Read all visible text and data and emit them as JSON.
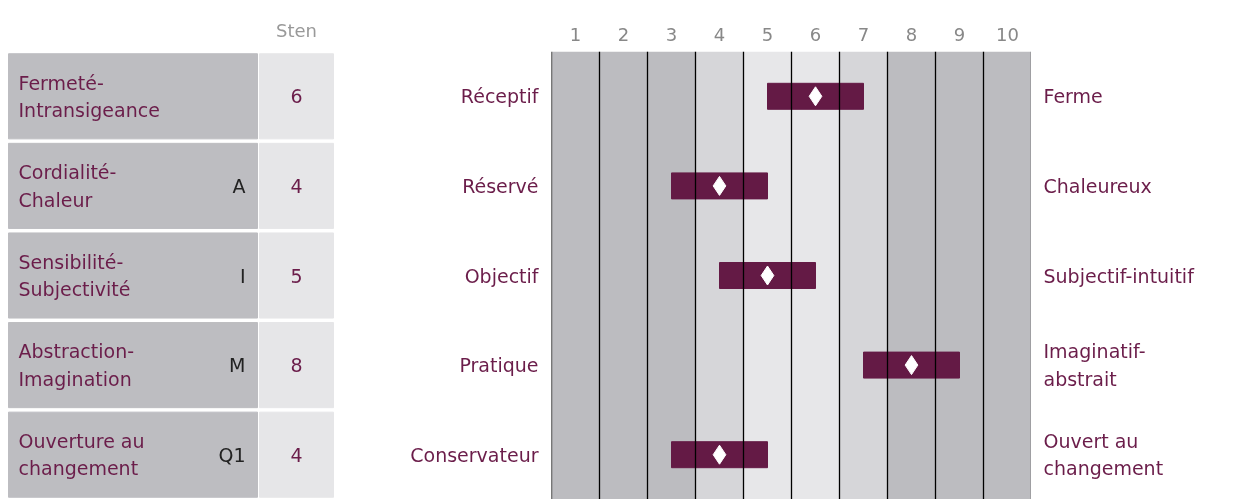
{
  "chart_data": {
    "type": "bar",
    "orientation": "horizontal",
    "categories": [
      "Réceptif",
      "Réservé",
      "Objectif",
      "Pratique",
      "Conservateur"
    ],
    "y2_categories": [
      "Ferme",
      "Chaleureux",
      "Subjectif-intuitif",
      "Imaginatif-\nabstrait",
      "Ouvert au\nchangement"
    ],
    "series": [
      {
        "color": "#641a45",
        "base": [
          5,
          3,
          4,
          7,
          3
        ],
        "values": [
          2,
          2,
          2,
          2,
          2
        ]
      },
      {
        "type": "scatter",
        "color": "#ffffff",
        "values": [
          6,
          4,
          5,
          8,
          4
        ],
        "value_labels": [
          "6",
          "4",
          "5",
          "8",
          "4"
        ]
      }
    ],
    "marker": "diamond",
    "xlim": [
      0.5,
      10.5
    ],
    "xticks": [
      1,
      2,
      3,
      4,
      5,
      6,
      7,
      8,
      9,
      10
    ],
    "bands": [
      {
        "axis": "x",
        "from": 0.5,
        "to": 3.5,
        "color": "#bcbcc0"
      },
      {
        "axis": "x",
        "from": 3.5,
        "to": 4.5,
        "color": "#d6d6d9"
      },
      {
        "axis": "x",
        "from": 4.5,
        "to": 6.5,
        "color": "#e7e7e9"
      },
      {
        "axis": "x",
        "from": 6.5,
        "to": 7.5,
        "color": "#d6d6d9"
      },
      {
        "axis": "x",
        "from": 7.5,
        "to": 10.5,
        "color": "#bcbcc0"
      }
    ],
    "ref_lines": [
      {
        "axis": "x",
        "value": 0.5,
        "color": "#000000"
      },
      {
        "axis": "x",
        "value": 1.5,
        "color": "#000000"
      },
      {
        "axis": "x",
        "value": 2.5,
        "color": "#000000"
      },
      {
        "axis": "x",
        "value": 3.5,
        "color": "#000000"
      },
      {
        "axis": "x",
        "value": 4.5,
        "color": "#000000"
      },
      {
        "axis": "x",
        "value": 5.5,
        "color": "#000000"
      },
      {
        "axis": "x",
        "value": 6.5,
        "color": "#000000"
      },
      {
        "axis": "x",
        "value": 7.5,
        "color": "#000000"
      },
      {
        "axis": "x",
        "value": 8.5,
        "color": "#000000"
      },
      {
        "axis": "x",
        "value": 9.5,
        "color": "#000000"
      },
      {
        "axis": "x",
        "value": 10.5,
        "color": "#000000"
      }
    ],
    "annotations": [
      "Sten",
      "Fermeté-\nIntransigeance",
      "Cordialité-\nChaleur",
      "Sensibilité-\nSubjectivité",
      "Abstraction-\nImagination",
      "Ouverture au\nchangement",
      "A",
      "I",
      "M",
      "Q1"
    ]
  }
}
